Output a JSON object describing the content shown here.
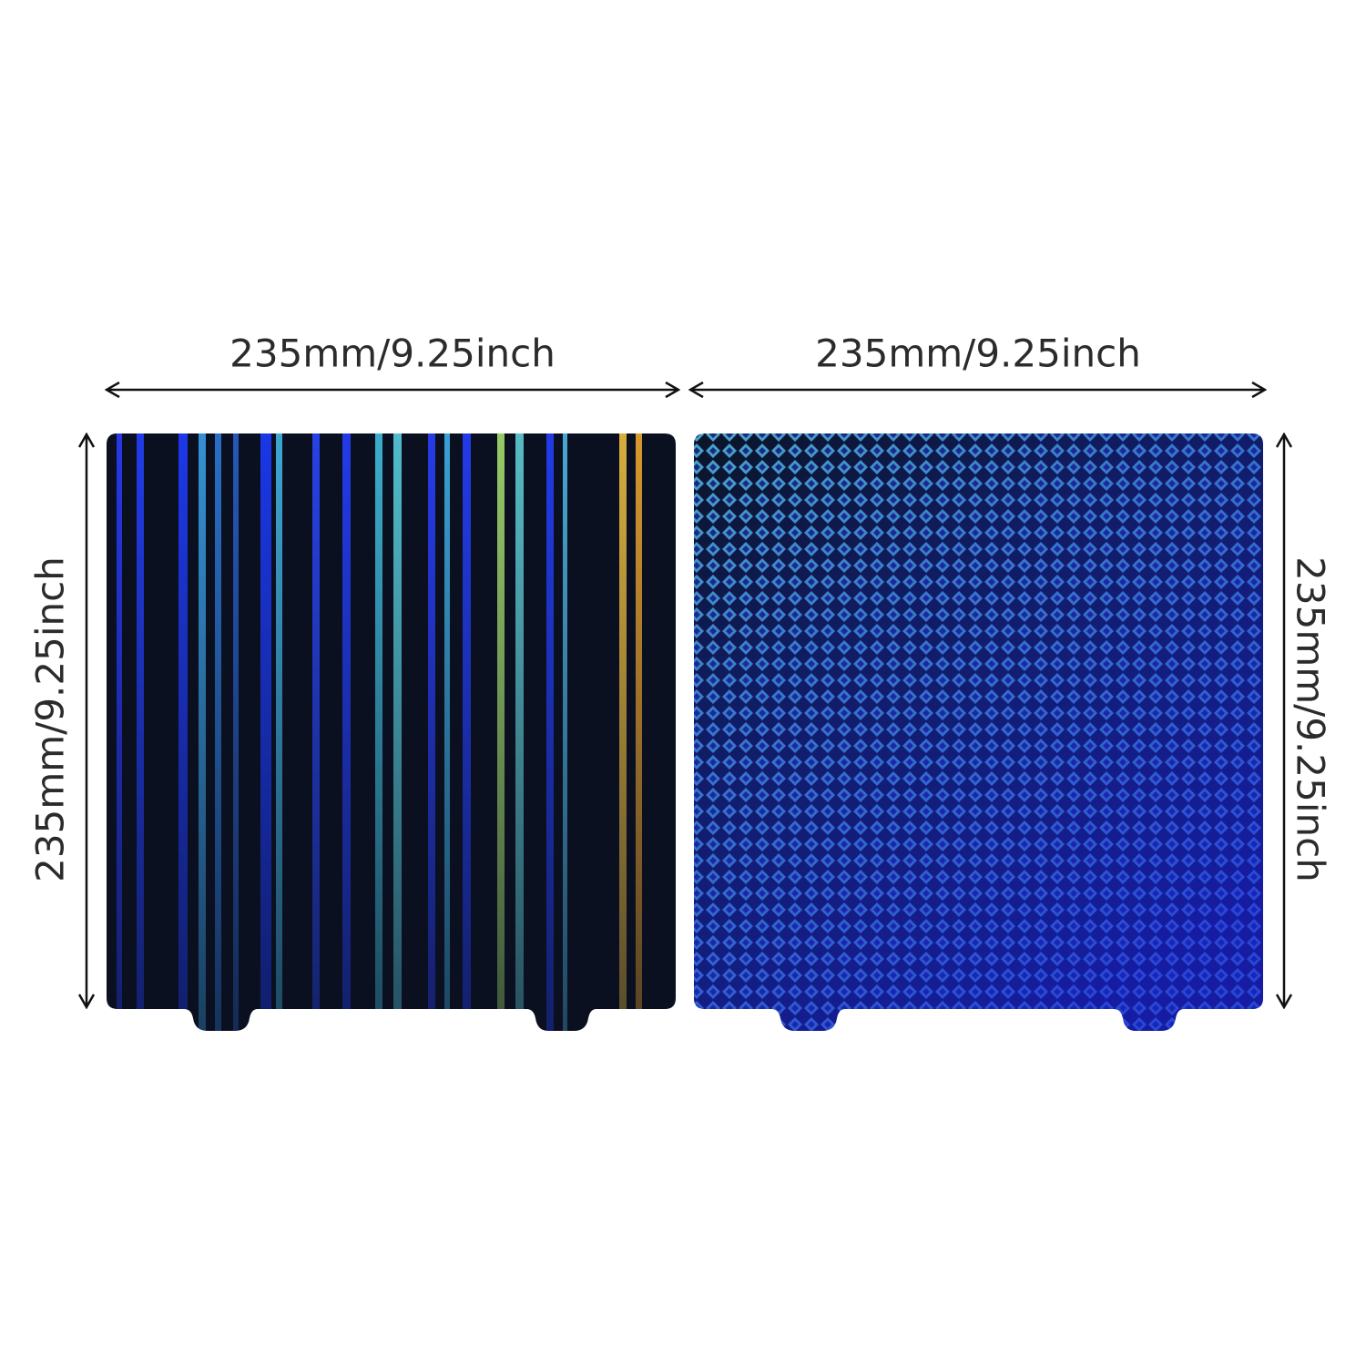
{
  "left_plate": {
    "width_label": "235mm/9.25inch",
    "height_label": "235mm/9.25inch"
  },
  "right_plate": {
    "width_label": "235mm/9.25inch",
    "height_label": "235mm/9.25inch"
  }
}
